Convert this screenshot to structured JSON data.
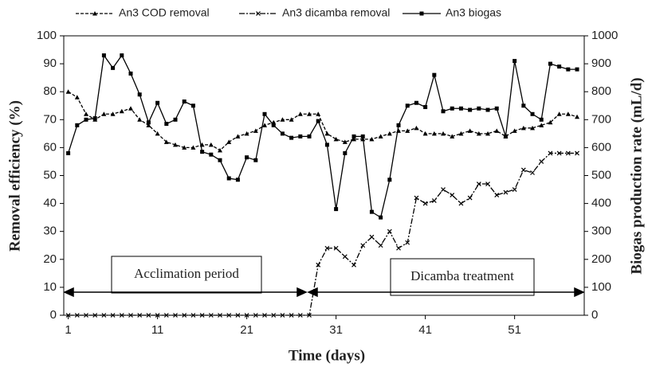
{
  "chart_data": {
    "type": "line",
    "xlabel": "Time (days)",
    "ylabel": "Removal efficiency (%)",
    "y2label": "Biogas production rate (mL/d)",
    "x": [
      1,
      2,
      3,
      4,
      5,
      6,
      7,
      8,
      9,
      10,
      11,
      12,
      13,
      14,
      15,
      16,
      17,
      18,
      19,
      20,
      21,
      22,
      23,
      24,
      25,
      26,
      27,
      28,
      29,
      30,
      31,
      32,
      33,
      34,
      35,
      36,
      37,
      38,
      39,
      40,
      41,
      42,
      43,
      44,
      45,
      46,
      47,
      48,
      49,
      50,
      51,
      52,
      53,
      54,
      55,
      56,
      57,
      58
    ],
    "xlim": [
      0.5,
      58.8
    ],
    "xticks": [
      1,
      11,
      21,
      31,
      41,
      51
    ],
    "ylim": [
      0,
      100
    ],
    "yticks": [
      0,
      10,
      20,
      30,
      40,
      50,
      60,
      70,
      80,
      90,
      100
    ],
    "y2lim": [
      0,
      1000
    ],
    "y2ticks": [
      0,
      100,
      200,
      300,
      400,
      500,
      600,
      700,
      800,
      900,
      1000
    ],
    "annotations": [
      "Acclimation period",
      "Dicamba treatment"
    ],
    "series": [
      {
        "name": "An3 COD removal",
        "color": "#000000",
        "dash": "4,2",
        "marker": "triangle",
        "values": [
          80,
          78,
          72,
          70,
          72,
          72,
          73,
          74,
          70,
          68,
          65,
          62,
          61,
          60,
          60,
          61,
          61,
          59,
          62,
          64,
          65,
          66,
          68,
          69,
          70,
          70,
          72,
          72,
          72,
          65,
          63,
          62,
          63,
          63,
          63,
          64,
          65,
          66,
          66,
          67,
          65,
          65,
          65,
          64,
          65,
          66,
          65,
          65,
          66,
          64,
          66,
          67,
          67,
          68,
          69,
          72,
          72,
          71
        ]
      },
      {
        "name": "An3 dicamba removal",
        "color": "#000000",
        "dash": "7,2,2,2",
        "marker": "x",
        "values": [
          0,
          0,
          0,
          0,
          0,
          0,
          0,
          0,
          0,
          0,
          0,
          0,
          0,
          0,
          0,
          0,
          0,
          0,
          0,
          0,
          0,
          0,
          0,
          0,
          0,
          0,
          0,
          0,
          18,
          24,
          24,
          21,
          18,
          25,
          28,
          25,
          30,
          24,
          26,
          42,
          40,
          41,
          45,
          43,
          40,
          42,
          47,
          47,
          43,
          44,
          45,
          52,
          51,
          55,
          58,
          58,
          58,
          58
        ]
      },
      {
        "name": "An3 biogas",
        "color": "#000000",
        "dash": "",
        "marker": "square",
        "axis": "y2",
        "values": [
          580,
          680,
          700,
          705,
          930,
          885,
          930,
          865,
          790,
          690,
          760,
          685,
          700,
          765,
          750,
          585,
          575,
          555,
          490,
          485,
          565,
          555,
          720,
          680,
          650,
          635,
          640,
          640,
          695,
          610,
          380,
          580,
          640,
          640,
          370,
          350,
          485,
          680,
          750,
          760,
          745,
          860,
          730,
          740,
          740,
          735,
          740,
          735,
          740,
          640,
          910,
          750,
          720,
          700,
          900,
          890,
          880,
          880
        ]
      }
    ]
  }
}
